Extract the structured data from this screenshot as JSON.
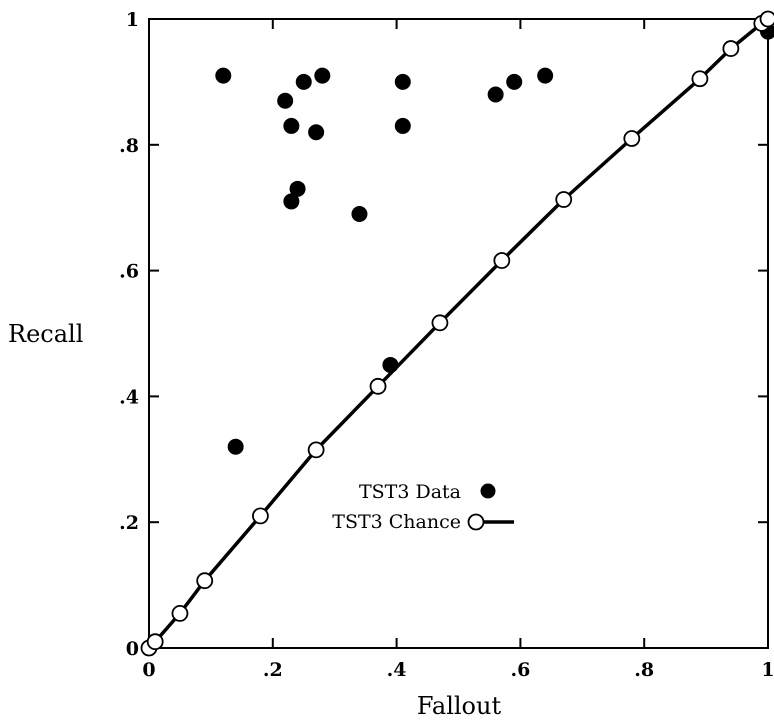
{
  "chart_data": {
    "type": "scatter",
    "title": "",
    "xlabel": "Fallout",
    "ylabel": "Recall",
    "xlim": [
      0,
      1
    ],
    "ylim": [
      0,
      1
    ],
    "grid": false,
    "legend_position": "lower-center",
    "x_ticks": [
      "0",
      ".2",
      ".4",
      ".6",
      ".8",
      "1"
    ],
    "y_ticks": [
      "0",
      ".2",
      ".4",
      ".6",
      ".8",
      "1"
    ],
    "series": [
      {
        "name": "TST3 Data",
        "kind": "scatter",
        "marker": "filled-circle",
        "color": "#000000",
        "x": [
          0.12,
          0.14,
          0.22,
          0.23,
          0.23,
          0.24,
          0.25,
          0.27,
          0.28,
          0.34,
          0.39,
          0.41,
          0.41,
          0.56,
          0.59,
          0.64,
          1.0
        ],
        "y": [
          0.91,
          0.32,
          0.87,
          0.83,
          0.71,
          0.73,
          0.9,
          0.82,
          0.91,
          0.69,
          0.45,
          0.9,
          0.83,
          0.88,
          0.9,
          0.91,
          0.98
        ]
      },
      {
        "name": "TST3 Chance",
        "kind": "line",
        "marker": "open-circle",
        "color": "#000000",
        "x": [
          0.0,
          0.01,
          0.05,
          0.09,
          0.18,
          0.27,
          0.37,
          0.47,
          0.57,
          0.67,
          0.78,
          0.89,
          0.94,
          0.99,
          1.0
        ],
        "y": [
          0.0,
          0.01,
          0.055,
          0.107,
          0.21,
          0.315,
          0.416,
          0.517,
          0.616,
          0.713,
          0.81,
          0.905,
          0.953,
          0.993,
          1.0
        ]
      }
    ]
  }
}
